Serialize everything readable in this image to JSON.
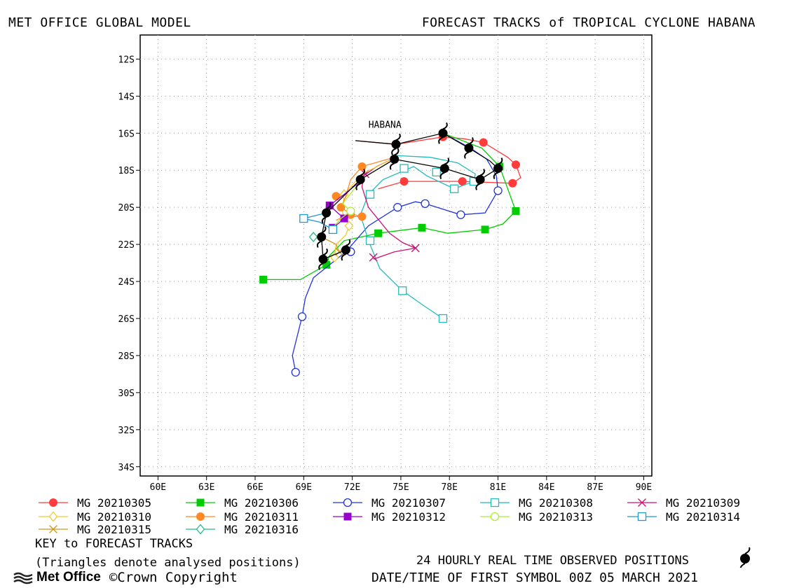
{
  "header": {
    "left": "MET OFFICE GLOBAL MODEL",
    "right": "FORECAST TRACKS of TROPICAL CYCLONE HABANA"
  },
  "footer": {
    "key_title": "KEY to FORECAST TRACKS",
    "key_note": "(Triangles denote analysed positions)",
    "logo": "Met Office",
    "copyright": "©Crown Copyright",
    "obs_line": "24 HOURLY REAL TIME OBSERVED POSITIONS",
    "date_line": "DATE/TIME OF FIRST SYMBOL 00Z 05 MARCH 2021"
  },
  "colors": {
    "c0305": "#ff3b3b",
    "c0306": "#00cc00",
    "c0307": "#2233dd",
    "c0308": "#22bbbb",
    "c0309": "#cc1177",
    "c0310": "#eecc33",
    "c0311": "#ff8822",
    "c0312": "#9900cc",
    "c0313": "#aaee33",
    "c0314": "#2299cc",
    "c0315": "#cc9922",
    "c0316": "#22bb88"
  },
  "chart_data": {
    "type": "scatter",
    "title": "FORECAST TRACKS of TROPICAL CYCLONE HABANA",
    "xlabel": "",
    "ylabel": "",
    "xlim": [
      58.9,
      90.5
    ],
    "ylim": [
      -34.5,
      -10.7
    ],
    "x_ticks": [
      "60E",
      "63E",
      "66E",
      "69E",
      "72E",
      "75E",
      "78E",
      "81E",
      "84E",
      "87E",
      "90E"
    ],
    "y_ticks": [
      "12S",
      "14S",
      "16S",
      "18S",
      "20S",
      "22S",
      "24S",
      "26S",
      "28S",
      "30S",
      "32S",
      "34S"
    ],
    "grid": true,
    "storm_label": "HABANA",
    "observed": [
      {
        "lon": 77.6,
        "lat": -16.0
      },
      {
        "lon": 74.7,
        "lat": -16.6
      },
      {
        "lon": 72.5,
        "lat": -18.5
      },
      {
        "lon": 70.4,
        "lat": -20.3
      },
      {
        "lon": 70.1,
        "lat": -21.6
      },
      {
        "lon": 70.2,
        "lat": -22.8
      },
      {
        "lon": 71.6,
        "lat": -22.3
      },
      {
        "lon": 74.6,
        "lat": -17.4
      },
      {
        "lon": 77.7,
        "lat": -17.9
      },
      {
        "lon": 79.9,
        "lat": -18.5
      },
      {
        "lon": 81.0,
        "lat": -17.9
      },
      {
        "lon": 79.2,
        "lat": -16.8
      }
    ],
    "series": [
      {
        "name": "MG 20210305",
        "color": "c0305",
        "marker": "filled-circle",
        "points": [
          [
            72.2,
            -16.4
          ],
          [
            74.7,
            -16.6
          ],
          [
            77.6,
            -16.2
          ],
          [
            78.9,
            -16.3
          ],
          [
            80.1,
            -16.5
          ],
          [
            81.6,
            -17.3
          ],
          [
            82.1,
            -17.7
          ],
          [
            82.4,
            -18.4
          ],
          [
            81.9,
            -18.7
          ],
          [
            78.8,
            -18.6
          ],
          [
            75.2,
            -18.6
          ],
          [
            73.6,
            -19.0
          ]
        ],
        "markers": [
          [
            77.6,
            -16.2
          ],
          [
            80.1,
            -16.5
          ],
          [
            82.1,
            -17.7
          ],
          [
            81.9,
            -18.7
          ],
          [
            78.8,
            -18.6
          ],
          [
            75.2,
            -18.6
          ]
        ]
      },
      {
        "name": "MG 20210306",
        "color": "c0306",
        "marker": "filled-square",
        "points": [
          [
            77.6,
            -16.0
          ],
          [
            80.0,
            -16.8
          ],
          [
            81.1,
            -17.8
          ],
          [
            81.6,
            -19.0
          ],
          [
            82.1,
            -20.2
          ],
          [
            81.3,
            -20.9
          ],
          [
            80.2,
            -21.2
          ],
          [
            77.9,
            -21.4
          ],
          [
            76.3,
            -21.1
          ],
          [
            73.6,
            -21.4
          ],
          [
            71.5,
            -21.8
          ],
          [
            70.6,
            -22.6
          ],
          [
            70.4,
            -23.1
          ],
          [
            68.8,
            -23.9
          ],
          [
            66.5,
            -23.9
          ]
        ],
        "markers": [
          [
            81.1,
            -17.8
          ],
          [
            82.1,
            -20.2
          ],
          [
            80.2,
            -21.2
          ],
          [
            76.3,
            -21.1
          ],
          [
            73.6,
            -21.4
          ],
          [
            70.4,
            -23.1
          ],
          [
            66.5,
            -23.9
          ]
        ]
      },
      {
        "name": "MG 20210307",
        "color": "c0307",
        "marker": "open-circle",
        "points": [
          [
            77.6,
            -16.0
          ],
          [
            79.3,
            -16.8
          ],
          [
            80.3,
            -17.4
          ],
          [
            80.9,
            -18.3
          ],
          [
            81.0,
            -19.1
          ],
          [
            80.2,
            -20.3
          ],
          [
            78.7,
            -20.4
          ],
          [
            76.5,
            -19.8
          ],
          [
            75.9,
            -19.7
          ],
          [
            74.8,
            -20.0
          ],
          [
            73.0,
            -21.0
          ],
          [
            71.6,
            -22.4
          ],
          [
            69.6,
            -23.8
          ],
          [
            69.1,
            -24.9
          ],
          [
            68.9,
            -25.9
          ],
          [
            68.5,
            -27.3
          ],
          [
            68.3,
            -28.0
          ],
          [
            68.5,
            -28.9
          ]
        ],
        "markers": [
          [
            81.0,
            -19.1
          ],
          [
            78.7,
            -20.4
          ],
          [
            76.5,
            -19.8
          ],
          [
            74.8,
            -20.0
          ],
          [
            71.9,
            -22.4
          ],
          [
            68.9,
            -25.9
          ],
          [
            68.5,
            -28.9
          ]
        ]
      },
      {
        "name": "MG 20210308",
        "color": "c0308",
        "marker": "open-square",
        "points": [
          [
            74.6,
            -17.2
          ],
          [
            76.8,
            -17.3
          ],
          [
            78.5,
            -17.6
          ],
          [
            79.6,
            -18.2
          ],
          [
            79.5,
            -18.6
          ],
          [
            78.3,
            -19.0
          ],
          [
            76.6,
            -18.3
          ],
          [
            75.8,
            -17.8
          ],
          [
            73.9,
            -18.5
          ],
          [
            73.0,
            -19.3
          ],
          [
            72.5,
            -20.4
          ],
          [
            73.0,
            -21.8
          ],
          [
            73.7,
            -23.3
          ],
          [
            75.1,
            -24.5
          ],
          [
            76.4,
            -25.3
          ],
          [
            77.6,
            -26.0
          ]
        ],
        "markers": [
          [
            79.5,
            -18.6
          ],
          [
            78.3,
            -19.0
          ],
          [
            77.2,
            -18.1
          ],
          [
            75.2,
            -17.9
          ],
          [
            73.1,
            -19.3
          ],
          [
            73.1,
            -21.8
          ],
          [
            75.1,
            -24.5
          ],
          [
            77.6,
            -26.0
          ]
        ]
      },
      {
        "name": "MG 20210309",
        "color": "c0309",
        "marker": "x",
        "points": [
          [
            74.7,
            -17.3
          ],
          [
            73.5,
            -17.8
          ],
          [
            72.7,
            -18.3
          ],
          [
            72.6,
            -18.9
          ],
          [
            73.0,
            -20.0
          ],
          [
            74.3,
            -21.4
          ],
          [
            75.1,
            -21.9
          ],
          [
            75.9,
            -22.2
          ],
          [
            74.6,
            -22.4
          ],
          [
            73.3,
            -22.8
          ]
        ],
        "markers": [
          [
            72.8,
            -18.2
          ],
          [
            75.9,
            -22.2
          ],
          [
            73.3,
            -22.7
          ]
        ]
      },
      {
        "name": "MG 20210310",
        "color": "c0310",
        "marker": "open-diamond",
        "points": [
          [
            74.7,
            -17.3
          ],
          [
            72.6,
            -18.2
          ],
          [
            71.5,
            -19.3
          ],
          [
            71.4,
            -20.3
          ],
          [
            71.8,
            -21.0
          ],
          [
            71.6,
            -21.5
          ],
          [
            71.0,
            -22.0
          ],
          [
            70.9,
            -22.7
          ]
        ],
        "markers": [
          [
            71.5,
            -19.3
          ],
          [
            71.8,
            -21.0
          ],
          [
            70.9,
            -22.7
          ]
        ]
      },
      {
        "name": "MG 20210311",
        "color": "c0311",
        "marker": "filled-circle",
        "points": [
          [
            74.6,
            -17.3
          ],
          [
            72.6,
            -17.8
          ],
          [
            71.9,
            -18.5
          ],
          [
            71.6,
            -19.4
          ],
          [
            71.3,
            -20.0
          ],
          [
            71.8,
            -20.3
          ],
          [
            72.5,
            -20.5
          ],
          [
            71.5,
            -20.5
          ],
          [
            71.0,
            -20.7
          ]
        ],
        "markers": [
          [
            72.6,
            -17.8
          ],
          [
            71.0,
            -19.4
          ],
          [
            71.3,
            -20.0
          ],
          [
            72.6,
            -20.5
          ],
          [
            71.9,
            -20.4
          ]
        ]
      },
      {
        "name": "MG 20210312",
        "color": "c0312",
        "marker": "filled-square",
        "points": [
          [
            72.5,
            -18.6
          ],
          [
            71.5,
            -19.3
          ],
          [
            70.6,
            -19.9
          ],
          [
            71.1,
            -20.3
          ],
          [
            71.5,
            -20.6
          ],
          [
            71.1,
            -20.9
          ],
          [
            70.8,
            -21.1
          ]
        ],
        "markers": [
          [
            70.6,
            -19.9
          ],
          [
            71.5,
            -20.6
          ],
          [
            70.8,
            -21.1
          ]
        ]
      },
      {
        "name": "MG 20210313",
        "color": "c0313",
        "marker": "open-circle",
        "points": [
          [
            72.5,
            -18.6
          ],
          [
            71.4,
            -19.8
          ],
          [
            71.9,
            -20.2
          ],
          [
            71.3,
            -20.6
          ],
          [
            70.9,
            -21.0
          ]
        ],
        "markers": [
          [
            71.9,
            -20.2
          ]
        ]
      },
      {
        "name": "MG 20210314",
        "color": "c0314",
        "marker": "open-square",
        "points": [
          [
            70.4,
            -20.3
          ],
          [
            69.0,
            -20.6
          ],
          [
            70.0,
            -20.8
          ],
          [
            70.8,
            -21.2
          ]
        ],
        "markers": [
          [
            69.0,
            -20.6
          ],
          [
            70.8,
            -21.2
          ]
        ]
      },
      {
        "name": "MG 20210315",
        "color": "c0315",
        "marker": "x",
        "points": [
          [
            70.1,
            -21.6
          ],
          [
            71.0,
            -22.0
          ],
          [
            71.2,
            -22.4
          ]
        ],
        "markers": [
          [
            71.2,
            -22.4
          ]
        ]
      },
      {
        "name": "MG 20210316",
        "color": "c0316",
        "marker": "open-diamond",
        "points": [
          [
            70.2,
            -21.6
          ],
          [
            69.6,
            -21.6
          ]
        ],
        "markers": [
          [
            69.6,
            -21.6
          ]
        ]
      }
    ],
    "observed_track": [
      [
        72.2,
        -16.4
      ],
      [
        74.7,
        -16.6
      ],
      [
        77.6,
        -16.0
      ],
      [
        79.2,
        -16.8
      ],
      [
        80.5,
        -17.5
      ],
      [
        81.0,
        -17.9
      ],
      [
        79.9,
        -18.5
      ],
      [
        77.7,
        -17.9
      ],
      [
        74.6,
        -17.4
      ],
      [
        72.5,
        -18.5
      ],
      [
        70.4,
        -20.3
      ],
      [
        70.1,
        -21.6
      ],
      [
        70.2,
        -22.8
      ],
      [
        71.6,
        -22.3
      ]
    ]
  }
}
